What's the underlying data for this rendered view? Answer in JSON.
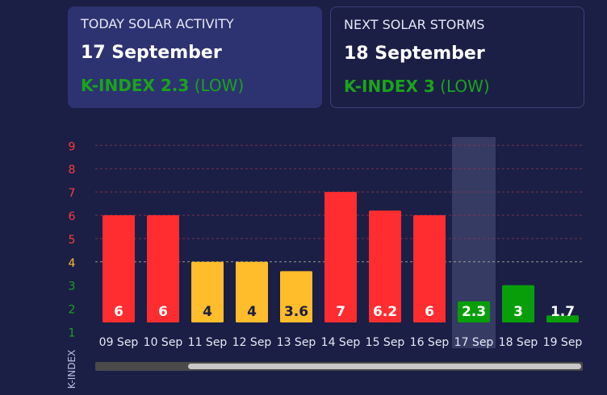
{
  "today_card": {
    "caption": "TODAY SOLAR ACTIVITY",
    "date": "17 September",
    "k_label": "K-INDEX 2.3",
    "k_level": "(LOW)"
  },
  "next_card": {
    "caption": "NEXT SOLAR STORMS",
    "date": "18 September",
    "k_label": "K-INDEX 3",
    "k_level": "(LOW)"
  },
  "colors": {
    "high": "#ff2d30",
    "mid": "#ffbc2b",
    "low": "#089e0a",
    "card_accent_text": "#1aa41a",
    "highlight": "#363b64"
  },
  "chart_data": {
    "type": "bar",
    "ylabel": "K-INDEX",
    "ylim": [
      1,
      9
    ],
    "yticks": [
      {
        "v": 9,
        "label": "9",
        "color": "#ff3b3b"
      },
      {
        "v": 8,
        "label": "8",
        "color": "#ff3b3b"
      },
      {
        "v": 7,
        "label": "7",
        "color": "#ff3b3b"
      },
      {
        "v": 6,
        "label": "6",
        "color": "#ff3b3b"
      },
      {
        "v": 5,
        "label": "5",
        "color": "#ff3b3b"
      },
      {
        "v": 4,
        "label": "4",
        "color": "#ffbc2b"
      },
      {
        "v": 3,
        "label": "3",
        "color": "#1aa41a"
      },
      {
        "v": 2,
        "label": "2",
        "color": "#1aa41a"
      },
      {
        "v": 1,
        "label": "1",
        "color": "#1aa41a"
      }
    ],
    "categories": [
      "09 Sep",
      "10 Sep",
      "11 Sep",
      "12 Sep",
      "13 Sep",
      "14 Sep",
      "15 Sep",
      "16 Sep",
      "17 Sep",
      "18 Sep",
      "19 Sep"
    ],
    "values": [
      6,
      6,
      4,
      4,
      3.6,
      7,
      6.2,
      6,
      2.3,
      3,
      1.7
    ],
    "labels": [
      "6",
      "6",
      "4",
      "4",
      "3.6",
      "7",
      "6.2",
      "6",
      "2.3",
      "3",
      "1.7"
    ],
    "levels": [
      "high",
      "high",
      "mid",
      "mid",
      "mid",
      "high",
      "high",
      "high",
      "low",
      "low",
      "low"
    ],
    "highlight_category": "17 Sep"
  },
  "scrollbar": {
    "thumb_start": 0.19,
    "thumb_end": 1.0
  }
}
